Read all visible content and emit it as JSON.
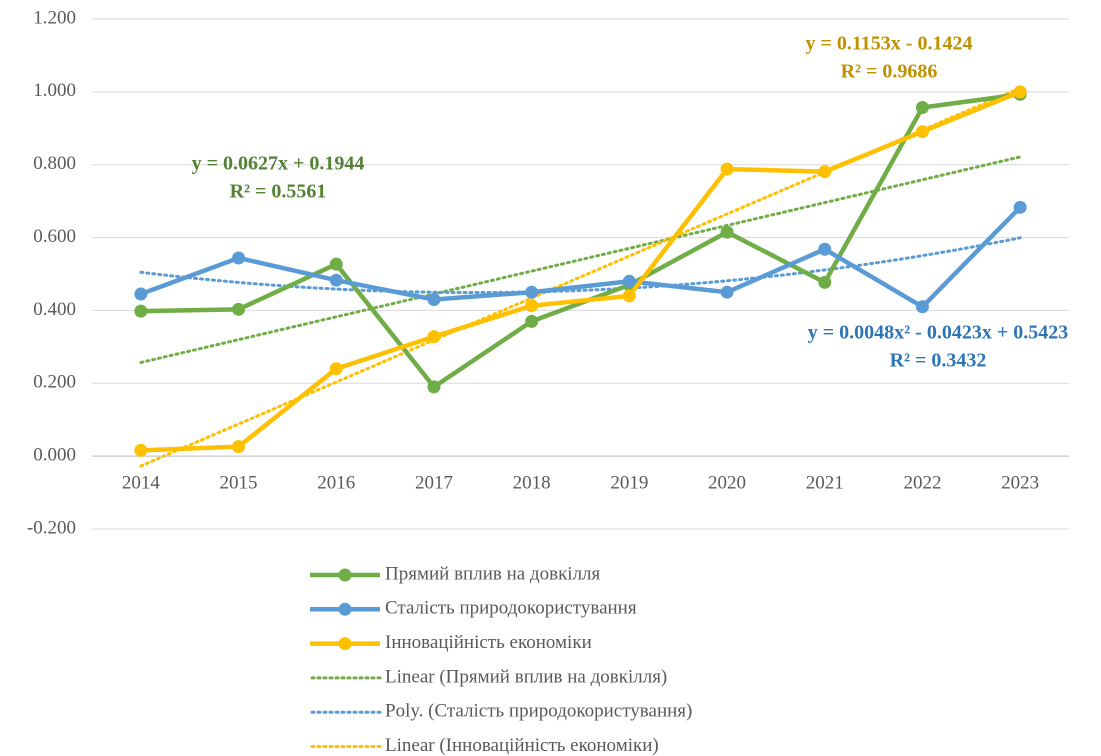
{
  "chart_data": {
    "type": "line",
    "categories": [
      "2014",
      "2015",
      "2016",
      "2017",
      "2018",
      "2019",
      "2020",
      "2021",
      "2022",
      "2023"
    ],
    "series": [
      {
        "name": "Прямий вплив на довкілля",
        "color": "#70ad47",
        "values": [
          0.398,
          0.403,
          0.527,
          0.19,
          0.37,
          0.47,
          0.615,
          0.477,
          0.957,
          0.993
        ]
      },
      {
        "name": "Сталість природокористування",
        "color": "#5b9bd5",
        "values": [
          0.445,
          0.544,
          0.483,
          0.43,
          0.45,
          0.48,
          0.45,
          0.568,
          0.41,
          0.683
        ]
      },
      {
        "name": "Інноваційність економіки",
        "color": "#ffc000",
        "values": [
          0.016,
          0.026,
          0.24,
          0.328,
          0.413,
          0.44,
          0.788,
          0.781,
          0.891,
          1.0
        ]
      }
    ],
    "trendlines": [
      {
        "name": "Linear (Прямий вплив на довкілля)",
        "color": "#70ad47",
        "coefficients": [
          0.0627,
          0.1944
        ],
        "equation": "y = 0.0627x + 0.1944",
        "r_squared": "R² = 0.5561",
        "label_color": "#548235"
      },
      {
        "name": "Poly. (Сталість природокористування)",
        "color": "#5b9bd5",
        "coefficients": [
          0.0048,
          -0.0423,
          0.5423
        ],
        "equation": "y = 0.0048x² - 0.0423x + 0.5423",
        "r_squared": "R² = 0.3432",
        "label_color": "#2e75b6"
      },
      {
        "name": "Linear (Інноваційність економіки)",
        "color": "#ffc000",
        "coefficients": [
          0.1153,
          -0.1424
        ],
        "equation": "y = 0.1153x - 0.1424",
        "r_squared": "R² = 0.9686",
        "label_color": "#bf9000"
      }
    ],
    "ylim": [
      -0.2,
      1.2
    ],
    "yticks": [
      {
        "value": -0.2,
        "label": "-0.200"
      },
      {
        "value": 0,
        "label": "0.000"
      },
      {
        "value": 0.2,
        "label": "0.200"
      },
      {
        "value": 0.4,
        "label": "0.400"
      },
      {
        "value": 0.6,
        "label": "0.600"
      },
      {
        "value": 0.8,
        "label": "0.800"
      },
      {
        "value": 1.0,
        "label": "1.000"
      },
      {
        "value": 1.2,
        "label": "1.200"
      }
    ],
    "grid": true,
    "legend": "bottom"
  }
}
